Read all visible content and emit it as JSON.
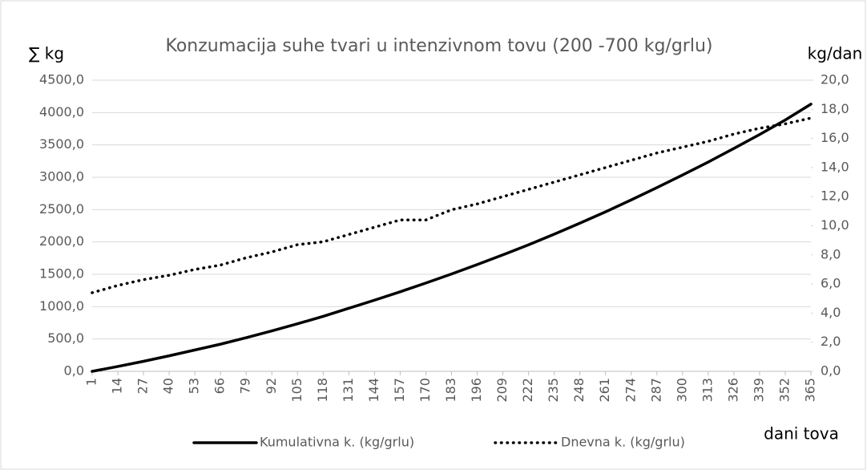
{
  "chart_data": {
    "type": "line",
    "title": "Konzumacija suhe tvari u intenzivnom tovu (200 -700 kg/grlu)",
    "ylabel": "∑ kg",
    "y2label": "kg/dan",
    "xlabel": "dani tova",
    "x": [
      1,
      14,
      27,
      40,
      53,
      66,
      79,
      92,
      105,
      118,
      131,
      144,
      157,
      170,
      183,
      196,
      209,
      222,
      235,
      248,
      261,
      274,
      287,
      300,
      313,
      326,
      339,
      352,
      365
    ],
    "xlim": [
      1,
      365
    ],
    "xticks": [
      1,
      14,
      27,
      40,
      53,
      66,
      79,
      92,
      105,
      118,
      131,
      144,
      157,
      170,
      183,
      196,
      209,
      222,
      235,
      248,
      261,
      274,
      287,
      300,
      313,
      326,
      339,
      352,
      365
    ],
    "ylim": [
      0,
      4500
    ],
    "yticks": [
      {
        "value": 0,
        "label": "0,0"
      },
      {
        "value": 500,
        "label": "500,0"
      },
      {
        "value": 1000,
        "label": "1000,0"
      },
      {
        "value": 1500,
        "label": "1500,0"
      },
      {
        "value": 2000,
        "label": "2000,0"
      },
      {
        "value": 2500,
        "label": "2500,0"
      },
      {
        "value": 3000,
        "label": "3000,0"
      },
      {
        "value": 3500,
        "label": "3500,0"
      },
      {
        "value": 4000,
        "label": "4000,0"
      },
      {
        "value": 4500,
        "label": "4500,0"
      }
    ],
    "y2lim": [
      0,
      20
    ],
    "y2ticks": [
      {
        "value": 0,
        "label": "0,0"
      },
      {
        "value": 2,
        "label": "2,0"
      },
      {
        "value": 4,
        "label": "4,0"
      },
      {
        "value": 6,
        "label": "6,0"
      },
      {
        "value": 8,
        "label": "8,0"
      },
      {
        "value": 10,
        "label": "10,0"
      },
      {
        "value": 12,
        "label": "12,0"
      },
      {
        "value": 14,
        "label": "14,0"
      },
      {
        "value": 16,
        "label": "16,0"
      },
      {
        "value": 18,
        "label": "18,0"
      },
      {
        "value": 20,
        "label": "20,0"
      }
    ],
    "grid": true,
    "legend": "bottom",
    "series": [
      {
        "name": "Kumulativna k. (kg/grlu)",
        "color": "#000000",
        "style": "solid",
        "values": [
          0,
          75,
          155,
          240,
          330,
          420,
          520,
          625,
          735,
          850,
          975,
          1100,
          1230,
          1365,
          1505,
          1650,
          1800,
          1955,
          2120,
          2290,
          2465,
          2650,
          2840,
          3035,
          3235,
          3445,
          3660,
          3885,
          4130
        ]
      },
      {
        "name": "Dnevna k. (kg/grlu)",
        "color": "#000000",
        "style": "dotted",
        "axis": "y2",
        "values": [
          5.4,
          5.9,
          6.3,
          6.6,
          7.0,
          7.3,
          7.8,
          8.2,
          8.7,
          8.9,
          9.4,
          9.9,
          10.4,
          10.4,
          11.1,
          11.5,
          12.0,
          12.5,
          13.0,
          13.5,
          14.0,
          14.5,
          15.0,
          15.4,
          15.8,
          16.3,
          16.7,
          17.0,
          17.4
        ]
      }
    ]
  }
}
